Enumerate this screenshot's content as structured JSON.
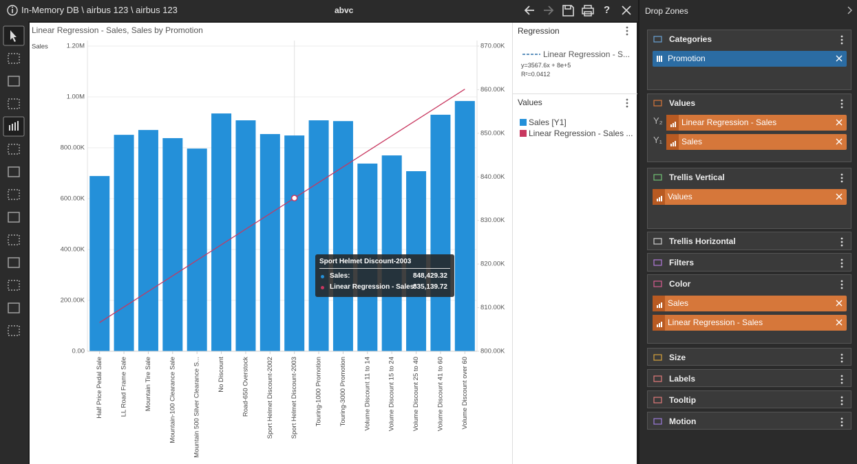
{
  "top_bar": {
    "breadcrumb": "In-Memory DB \\ airbus 123 \\ airbus 123",
    "title": "abvc",
    "help": "?"
  },
  "chart_data": {
    "type": "bar",
    "title": "Linear Regression - Sales, Sales by Promotion",
    "y_label": "Sales",
    "categories": [
      "Half Price Pedal Sale",
      "LL Road Frame Sale",
      "Mountain Tire Sale",
      "Mountain-100 Clearance Sale",
      "Mountain 500 Silver Clearance S...",
      "No Discount",
      "Road-650 Overstock",
      "Sport Helmet Discount-2002",
      "Sport Helmet Discount-2003",
      "Touring-1000 Promotion",
      "Touring-3000 Promotion",
      "Volume Discount 11 to 14",
      "Volume Discount 15 to 24",
      "Volume Discount 25 to 40",
      "Volume Discount 41 to 60",
      "Volume Discount over 60"
    ],
    "series": [
      {
        "name": "Sales [Y1]",
        "color": "#2490d9",
        "values": [
          689000,
          851000,
          870000,
          838000,
          797000,
          935000,
          908000,
          854000,
          848429.32,
          908000,
          905000,
          738000,
          770000,
          708000,
          930000,
          984000
        ]
      },
      {
        "name": "Linear Regression - Sales ...",
        "color": "#c8375f",
        "axis": "y2",
        "type": "line",
        "values": [
          806598.92,
          810166.52,
          813734.12,
          817301.72,
          820869.32,
          824436.92,
          828004.52,
          831572.12,
          835139.72,
          838707.32,
          842274.92,
          845842.52,
          849410.12,
          852977.72,
          856545.32,
          860112.92
        ]
      }
    ],
    "ylim": [
      0,
      1200000
    ],
    "yticks": [
      {
        "value": 0,
        "label": "0.00"
      },
      {
        "value": 200000,
        "label": "200.00K"
      },
      {
        "value": 400000,
        "label": "400.00K"
      },
      {
        "value": 600000,
        "label": "600.00K"
      },
      {
        "value": 800000,
        "label": "800.00K"
      },
      {
        "value": 1000000,
        "label": "1.00M"
      },
      {
        "value": 1200000,
        "label": "1.20M"
      }
    ],
    "y2lim": [
      800000,
      870000
    ],
    "y2ticks": [
      {
        "value": 800000,
        "label": "800.00K"
      },
      {
        "value": 810000,
        "label": "810.00K"
      },
      {
        "value": 820000,
        "label": "820.00K"
      },
      {
        "value": 830000,
        "label": "830.00K"
      },
      {
        "value": 840000,
        "label": "840.00K"
      },
      {
        "value": 850000,
        "label": "850.00K"
      },
      {
        "value": 860000,
        "label": "860.00K"
      },
      {
        "value": 870000,
        "label": "870.00K"
      }
    ],
    "grid": true
  },
  "tooltip": {
    "title": "Sport Helmet Discount-2003",
    "rows": [
      {
        "label": "Sales:",
        "value": "848,429.32"
      },
      {
        "label": "Linear Regression - Sales:",
        "value": "835,139.72"
      }
    ]
  },
  "legend_panel": {
    "regression": {
      "title": "Regression",
      "entry": "Linear Regression - S...",
      "equation": "y=3567.6x + 8e+5",
      "r2": "R²=0.0412"
    },
    "values": {
      "title": "Values"
    }
  },
  "drop_zones": {
    "title": "Drop Zones",
    "sections": [
      {
        "title": "Categories",
        "chips": [
          {
            "label": "Promotion"
          }
        ]
      },
      {
        "title": "Values",
        "chips": [
          {
            "axis": "Y₂",
            "label": "Linear Regression - Sales"
          },
          {
            "axis": "Y₁",
            "label": "Sales"
          }
        ]
      },
      {
        "title": "Trellis Vertical",
        "chips": [
          {
            "label": "Values"
          }
        ]
      },
      {
        "title": "Trellis Horizontal"
      },
      {
        "title": "Filters"
      },
      {
        "title": "Color",
        "chips": [
          {
            "label": "Sales"
          },
          {
            "label": "Linear Regression - Sales"
          }
        ]
      },
      {
        "title": "Size"
      },
      {
        "title": "Labels"
      },
      {
        "title": "Tooltip"
      },
      {
        "title": "Motion"
      }
    ]
  }
}
